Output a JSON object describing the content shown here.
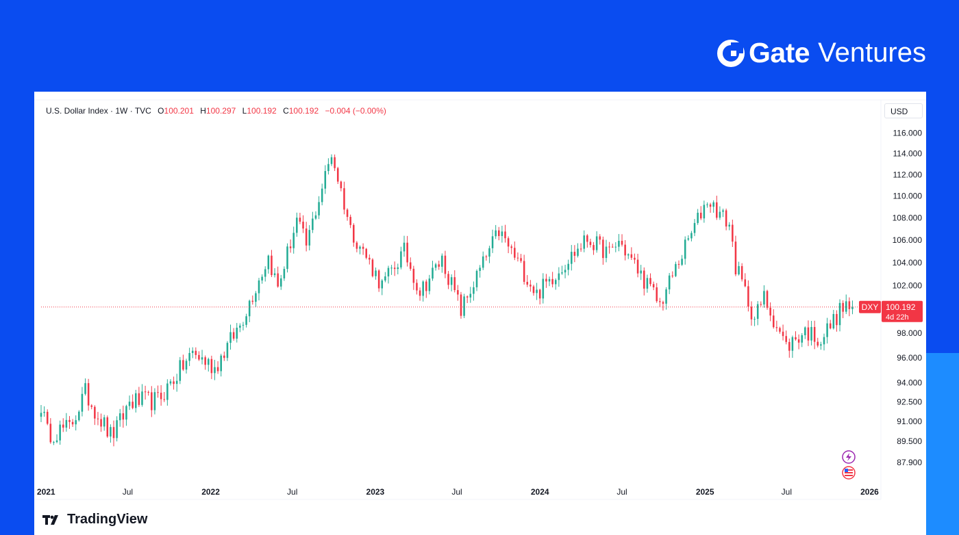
{
  "brand": {
    "name_bold": "Gate",
    "name_light": "Ventures",
    "icon": "gate-logo-icon"
  },
  "legend": {
    "symbol": "U.S. Dollar Index · 1W · TVC",
    "open_label": "O",
    "open": "100.201",
    "high_label": "H",
    "high": "100.297",
    "low_label": "L",
    "low": "100.192",
    "close_label": "C",
    "close": "100.192",
    "change": "−0.004 (−0.00%)"
  },
  "currency_button": "USD",
  "price_tag": {
    "symbol": "DXY",
    "price": "100.192",
    "countdown": "4d 22h"
  },
  "footer_logo": "TradingView",
  "side_icons": [
    "flash-icon",
    "us-flag-icon"
  ],
  "colors": {
    "up": "#22ab94",
    "down": "#f23645",
    "background_brand": "#0a4cf0",
    "accent": "#1d8cff"
  },
  "chart_data": {
    "type": "candlestick",
    "interval": "1W",
    "y_scale": "log",
    "ylim": [
      86.5,
      117.5
    ],
    "y_ticks": [
      "116.000",
      "114.000",
      "112.000",
      "110.000",
      "108.000",
      "106.000",
      "104.000",
      "102.000",
      "98.000",
      "96.000",
      "94.000",
      "92.500",
      "91.000",
      "89.500",
      "87.900"
    ],
    "x_ticks": [
      {
        "label": "2021",
        "date": "2021-01-01",
        "bold": true
      },
      {
        "label": "Jul",
        "date": "2021-07-01",
        "bold": false
      },
      {
        "label": "2022",
        "date": "2022-01-01",
        "bold": true
      },
      {
        "label": "Jul",
        "date": "2022-07-01",
        "bold": false
      },
      {
        "label": "2023",
        "date": "2023-01-01",
        "bold": true
      },
      {
        "label": "Jul",
        "date": "2023-07-01",
        "bold": false
      },
      {
        "label": "2024",
        "date": "2024-01-01",
        "bold": true
      },
      {
        "label": "Jul",
        "date": "2024-07-01",
        "bold": false
      },
      {
        "label": "2025",
        "date": "2025-01-01",
        "bold": true
      },
      {
        "label": "Jul",
        "date": "2025-07-01",
        "bold": false
      },
      {
        "label": "2026",
        "date": "2026-01-01",
        "bold": true
      }
    ],
    "x_range": [
      "2020-12-21",
      "2026-01-20"
    ],
    "last_price": 100.192,
    "closes": [
      {
        "date": "2020-12-21",
        "close": 92.3
      },
      {
        "date": "2021-01-04",
        "close": 90.1
      },
      {
        "date": "2021-02-22",
        "close": 90.5
      },
      {
        "date": "2021-03-29",
        "close": 93.2
      },
      {
        "date": "2021-05-24",
        "close": 89.9
      },
      {
        "date": "2021-06-07",
        "close": 90.4
      },
      {
        "date": "2021-07-05",
        "close": 92.5
      },
      {
        "date": "2021-09-06",
        "close": 92.6
      },
      {
        "date": "2021-11-22",
        "close": 96.4
      },
      {
        "date": "2022-01-10",
        "close": 95.2
      },
      {
        "date": "2022-03-07",
        "close": 98.7
      },
      {
        "date": "2022-05-09",
        "close": 104.5
      },
      {
        "date": "2022-05-30",
        "close": 101.8
      },
      {
        "date": "2022-07-11",
        "close": 107.8
      },
      {
        "date": "2022-08-01",
        "close": 105.5
      },
      {
        "date": "2022-09-26",
        "close": 114.0
      },
      {
        "date": "2022-11-07",
        "close": 107.0
      },
      {
        "date": "2023-01-16",
        "close": 102.0
      },
      {
        "date": "2023-03-06",
        "close": 105.0
      },
      {
        "date": "2023-04-10",
        "close": 101.5
      },
      {
        "date": "2023-05-29",
        "close": 104.3
      },
      {
        "date": "2023-07-10",
        "close": 99.9
      },
      {
        "date": "2023-10-02",
        "close": 106.8
      },
      {
        "date": "2023-12-25",
        "close": 101.3
      },
      {
        "date": "2024-04-15",
        "close": 106.1
      },
      {
        "date": "2024-06-03",
        "close": 104.8
      },
      {
        "date": "2024-06-24",
        "close": 105.9
      },
      {
        "date": "2024-09-23",
        "close": 100.4
      },
      {
        "date": "2025-01-06",
        "close": 109.7
      },
      {
        "date": "2025-02-24",
        "close": 107.4
      },
      {
        "date": "2025-03-10",
        "close": 103.7
      },
      {
        "date": "2025-04-21",
        "close": 99.2
      },
      {
        "date": "2025-05-12",
        "close": 101.0
      },
      {
        "date": "2025-06-30",
        "close": 96.9
      },
      {
        "date": "2025-08-11",
        "close": 98.2
      },
      {
        "date": "2025-09-15",
        "close": 97.5
      },
      {
        "date": "2025-11-03",
        "close": 100.2
      },
      {
        "date": "2025-11-24",
        "close": 100.192
      }
    ]
  }
}
